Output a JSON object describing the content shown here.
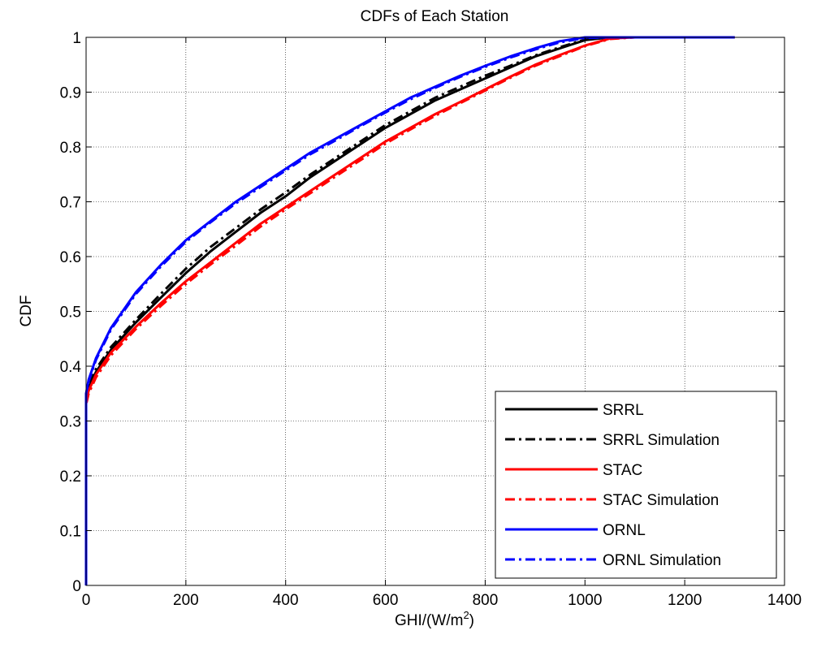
{
  "chart_data": {
    "type": "line",
    "title": "CDFs of Each Station",
    "xlabel": "GHI/(W/m",
    "xlabel_sup": "2",
    "xlabel_close": ")",
    "ylabel": "CDF",
    "xlim": [
      0,
      1400
    ],
    "ylim": [
      0,
      1
    ],
    "xticks": [
      0,
      200,
      400,
      600,
      800,
      1000,
      1200,
      1400
    ],
    "yticks": [
      0,
      0.1,
      0.2,
      0.3,
      0.4,
      0.5,
      0.6,
      0.7,
      0.8,
      0.9,
      1
    ],
    "ytick_labels": [
      "0",
      "0.1",
      "0.2",
      "0.3",
      "0.4",
      "0.5",
      "0.6",
      "0.7",
      "0.8",
      "0.9",
      "1"
    ],
    "grid": true,
    "legend_position": "bottom-right",
    "series": [
      {
        "name": "SRRL",
        "color": "#000000",
        "style": "solid",
        "x": [
          0,
          0,
          5,
          20,
          50,
          100,
          150,
          200,
          250,
          300,
          350,
          400,
          450,
          500,
          550,
          600,
          650,
          700,
          750,
          800,
          850,
          900,
          950,
          1000,
          1050,
          1100,
          1200,
          1300
        ],
        "y": [
          0,
          0.34,
          0.36,
          0.39,
          0.43,
          0.48,
          0.525,
          0.57,
          0.61,
          0.645,
          0.68,
          0.71,
          0.745,
          0.775,
          0.805,
          0.835,
          0.86,
          0.885,
          0.905,
          0.925,
          0.945,
          0.965,
          0.98,
          0.995,
          1.0,
          1.0,
          1.0,
          1.0
        ]
      },
      {
        "name": "SRRL Simulation",
        "color": "#000000",
        "style": "dashdot",
        "x": [
          0,
          0,
          5,
          20,
          50,
          100,
          150,
          200,
          250,
          300,
          350,
          400,
          450,
          500,
          550,
          600,
          650,
          700,
          750,
          800,
          850,
          900,
          950,
          1000,
          1050,
          1100,
          1200,
          1300
        ],
        "y": [
          0,
          0.345,
          0.365,
          0.395,
          0.435,
          0.485,
          0.532,
          0.578,
          0.618,
          0.652,
          0.686,
          0.717,
          0.75,
          0.78,
          0.81,
          0.84,
          0.865,
          0.89,
          0.91,
          0.93,
          0.948,
          0.967,
          0.982,
          0.996,
          1.0,
          1.0,
          1.0,
          1.0
        ]
      },
      {
        "name": "STAC",
        "color": "#ff0000",
        "style": "solid",
        "x": [
          0,
          0,
          5,
          20,
          50,
          100,
          150,
          200,
          250,
          300,
          350,
          400,
          450,
          500,
          550,
          600,
          650,
          700,
          750,
          800,
          850,
          900,
          950,
          1000,
          1050,
          1100,
          1200,
          1300
        ],
        "y": [
          0,
          0.335,
          0.355,
          0.385,
          0.425,
          0.472,
          0.515,
          0.555,
          0.59,
          0.625,
          0.66,
          0.69,
          0.72,
          0.75,
          0.78,
          0.81,
          0.835,
          0.86,
          0.882,
          0.905,
          0.928,
          0.95,
          0.968,
          0.985,
          0.998,
          1.0,
          1.0,
          1.0
        ]
      },
      {
        "name": "STAC Simulation",
        "color": "#ff0000",
        "style": "dashdot",
        "x": [
          0,
          0,
          5,
          20,
          50,
          100,
          150,
          200,
          250,
          300,
          350,
          400,
          450,
          500,
          550,
          600,
          650,
          700,
          750,
          800,
          850,
          900,
          950,
          1000,
          1050,
          1100,
          1200,
          1300
        ],
        "y": [
          0,
          0.33,
          0.35,
          0.38,
          0.42,
          0.468,
          0.51,
          0.55,
          0.586,
          0.62,
          0.655,
          0.686,
          0.716,
          0.746,
          0.776,
          0.806,
          0.832,
          0.857,
          0.88,
          0.903,
          0.926,
          0.948,
          0.966,
          0.984,
          0.997,
          1.0,
          1.0,
          1.0
        ]
      },
      {
        "name": "ORNL",
        "color": "#0000ff",
        "style": "solid",
        "x": [
          0,
          0,
          5,
          20,
          50,
          100,
          150,
          200,
          250,
          300,
          350,
          400,
          450,
          500,
          550,
          600,
          650,
          700,
          750,
          800,
          850,
          900,
          950,
          1000,
          1050,
          1100,
          1200,
          1300
        ],
        "y": [
          0,
          0.35,
          0.375,
          0.415,
          0.47,
          0.535,
          0.585,
          0.63,
          0.665,
          0.7,
          0.73,
          0.76,
          0.79,
          0.815,
          0.84,
          0.865,
          0.89,
          0.91,
          0.93,
          0.948,
          0.965,
          0.98,
          0.993,
          1.0,
          1.0,
          1.0,
          1.0,
          1.0
        ]
      },
      {
        "name": "ORNL Simulation",
        "color": "#0000ff",
        "style": "dashdot",
        "x": [
          0,
          0,
          5,
          20,
          50,
          100,
          150,
          200,
          250,
          300,
          350,
          400,
          450,
          500,
          550,
          600,
          650,
          700,
          750,
          800,
          850,
          900,
          950,
          1000,
          1050,
          1100,
          1200,
          1300
        ],
        "y": [
          0,
          0.348,
          0.372,
          0.412,
          0.467,
          0.532,
          0.582,
          0.627,
          0.663,
          0.697,
          0.727,
          0.757,
          0.787,
          0.812,
          0.838,
          0.863,
          0.887,
          0.908,
          0.928,
          0.946,
          0.963,
          0.978,
          0.991,
          0.999,
          1.0,
          1.0,
          1.0,
          1.0
        ]
      }
    ]
  }
}
